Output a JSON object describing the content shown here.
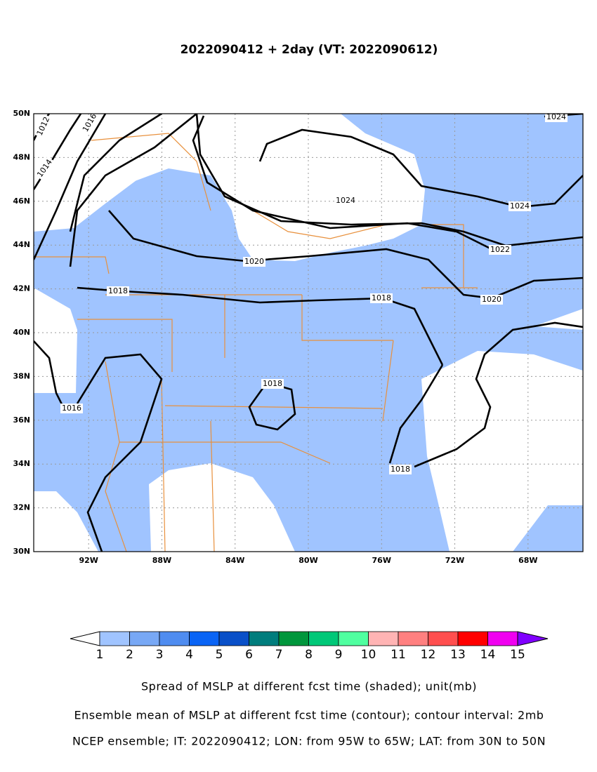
{
  "title": "2022090412 + 2day (VT: 2022090612)",
  "map": {
    "lat_labels": [
      "30N",
      "32N",
      "34N",
      "36N",
      "38N",
      "40N",
      "42N",
      "44N",
      "46N",
      "48N",
      "50N"
    ],
    "lon_labels": [
      "92W",
      "88W",
      "84W",
      "80W",
      "76W",
      "72W",
      "68W"
    ],
    "contour_labels": [
      1012,
      1014,
      1016,
      1024,
      1024,
      1024,
      1022,
      1020,
      1020,
      1018,
      1018,
      1018,
      1018,
      1016
    ]
  },
  "colorbar": {
    "colors": [
      "#a0c4ff",
      "#78a8f5",
      "#4f8cf0",
      "#0a64f5",
      "#0a50c8",
      "#007d7d",
      "#00963c",
      "#00c878",
      "#50ffa0",
      "#ffb4b4",
      "#ff8080",
      "#ff4f4f",
      "#ff0000",
      "#f000f0",
      "#8000ff"
    ],
    "labels": [
      1,
      2,
      3,
      4,
      5,
      6,
      7,
      8,
      9,
      10,
      11,
      12,
      13,
      14,
      15
    ]
  },
  "captions": [
    "Spread of MSLP at different fcst time (shaded); unit(mb)",
    "Ensemble mean of MSLP at different fcst time (contour); contour interval: 2mb",
    "NCEP ensemble; IT: 2022090412; LON: from 95W to 65W; LAT: from 30N to 50N"
  ]
}
